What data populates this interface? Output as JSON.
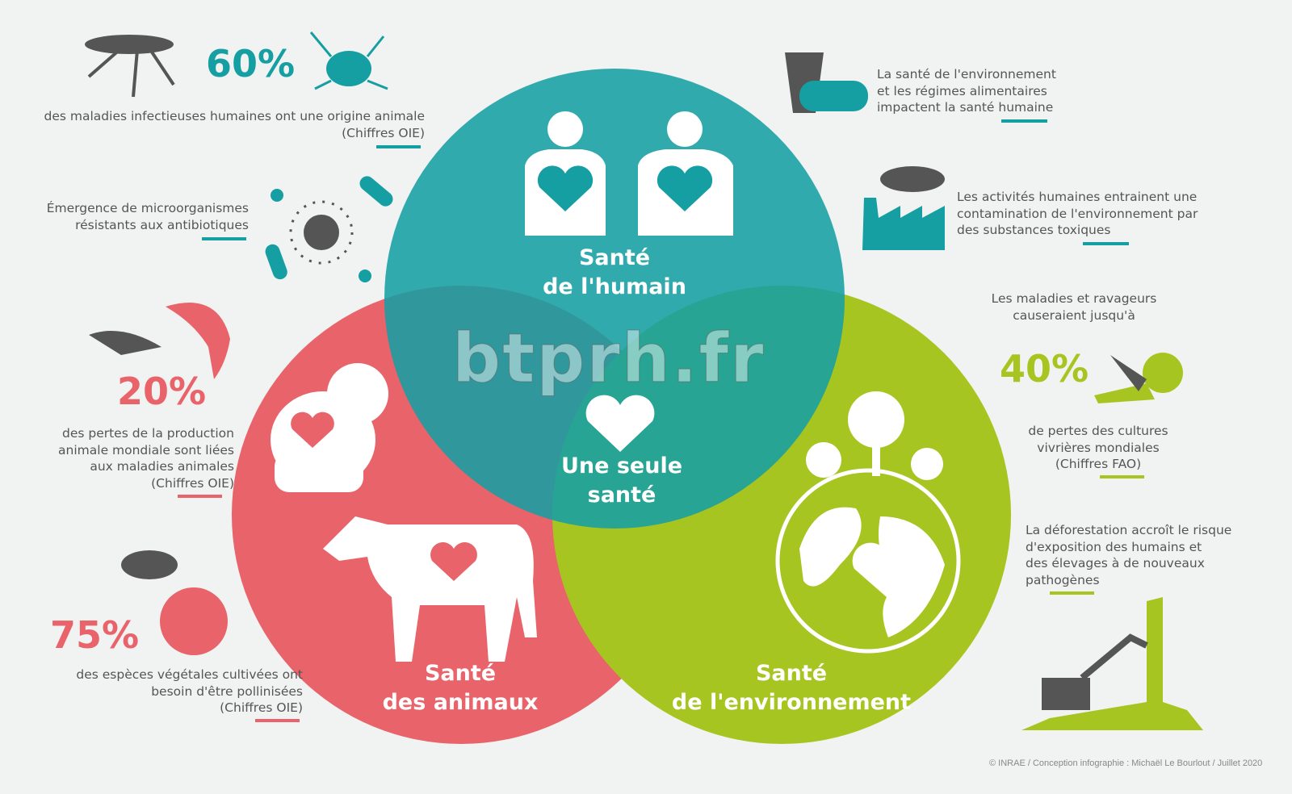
{
  "colors": {
    "humain": "#169fa3",
    "animaux": "#e9636a",
    "environnement": "#a7c520",
    "text": "#555555",
    "background": "#f1f2f2"
  },
  "circles": {
    "humain": {
      "line1": "Santé",
      "line2": "de l'humain"
    },
    "animaux": {
      "line1": "Santé",
      "line2": "des animaux"
    },
    "environnement": {
      "line1": "Santé",
      "line2": "de l'environnement"
    },
    "center": {
      "line1": "Une seule",
      "line2": "santé"
    }
  },
  "watermark": "btprh.fr",
  "left": {
    "stat1": {
      "value": "60%",
      "text1": "des maladies infectieuses humaines ont une origine animale",
      "text2": "(Chiffres OIE)"
    },
    "antibio": {
      "text1": "Émergence de microorganismes",
      "text2": "résistants aux antibiotiques"
    },
    "stat2": {
      "value": "20%",
      "text1": "des pertes de la production",
      "text2": "animale mondiale sont liées",
      "text3": "aux maladies animales",
      "text4": "(Chiffres OIE)"
    },
    "stat3": {
      "value": "75%",
      "text1": "des espèces végétales cultivées ont",
      "text2": "besoin d'être pollinisées",
      "text3": "(Chiffres OIE)"
    }
  },
  "right": {
    "food": {
      "text1": "La santé de l'environnement",
      "text2": "et les régimes alimentaires",
      "text3": "impactent la santé humaine"
    },
    "factory": {
      "text1": "Les activités humaines entrainent une",
      "text2": "contamination de l'environnement par",
      "text3": "des substances toxiques"
    },
    "crops": {
      "pre1": "Les maladies et ravageurs",
      "pre2": "causeraient jusqu'à",
      "value": "40%",
      "text1": "de pertes des cultures",
      "text2": "vivrières mondiales",
      "text3": "(Chiffres FAO)"
    },
    "forest": {
      "text1": "La déforestation accroît le risque",
      "text2": "d'exposition des humains et",
      "text3": "des élevages à de nouveaux",
      "text4": "pathogènes"
    }
  },
  "credit": "© INRAE / Conception infographie : Michaël Le Bourlout / Juillet 2020"
}
